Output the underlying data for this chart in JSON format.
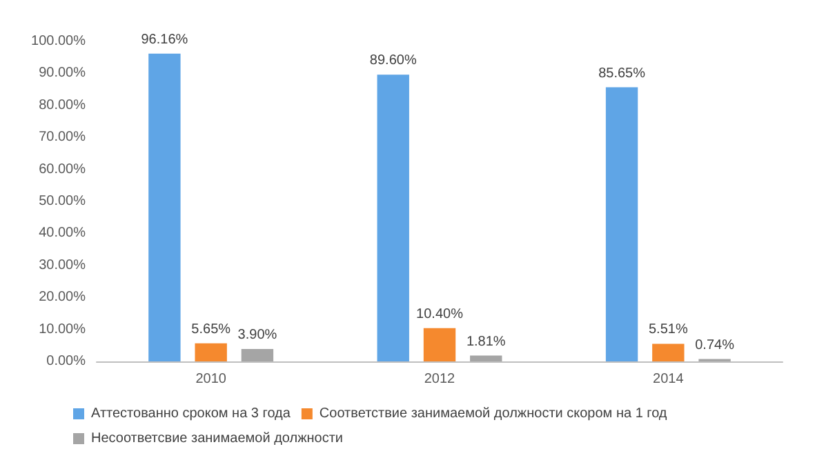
{
  "chart_data": {
    "type": "bar",
    "categories": [
      "2010",
      "2012",
      "2014"
    ],
    "series": [
      {
        "name": "Аттестованно сроком на 3 года",
        "color": "#5fa5e6",
        "values": [
          96.16,
          89.6,
          85.65
        ],
        "value_labels": [
          "96.16%",
          "89.60%",
          "85.65%"
        ]
      },
      {
        "name": "Соответствие занимаемой должности скором на 1 год",
        "color": "#f5892e",
        "values": [
          5.65,
          10.4,
          5.51
        ],
        "value_labels": [
          "5.65%",
          "10.40%",
          "5.51%"
        ]
      },
      {
        "name": "Несоответсвие занимаемой должности",
        "color": "#a5a5a5",
        "values": [
          3.9,
          1.81,
          0.74
        ],
        "value_labels": [
          "3.90%",
          "1.81%",
          "0.74%"
        ]
      }
    ],
    "ylim": [
      0,
      100
    ],
    "yticks": [
      {
        "value": 0,
        "label": "0.00%"
      },
      {
        "value": 10,
        "label": "10.00%"
      },
      {
        "value": 20,
        "label": "20.00%"
      },
      {
        "value": 30,
        "label": "30.00%"
      },
      {
        "value": 40,
        "label": "40.00%"
      },
      {
        "value": 50,
        "label": "50.00%"
      },
      {
        "value": 60,
        "label": "60.00%"
      },
      {
        "value": 70,
        "label": "70.00%"
      },
      {
        "value": 80,
        "label": "80.00%"
      },
      {
        "value": 90,
        "label": "90.00%"
      },
      {
        "value": 100,
        "label": "100.00%"
      }
    ],
    "grid": false,
    "legend": "bottom"
  }
}
